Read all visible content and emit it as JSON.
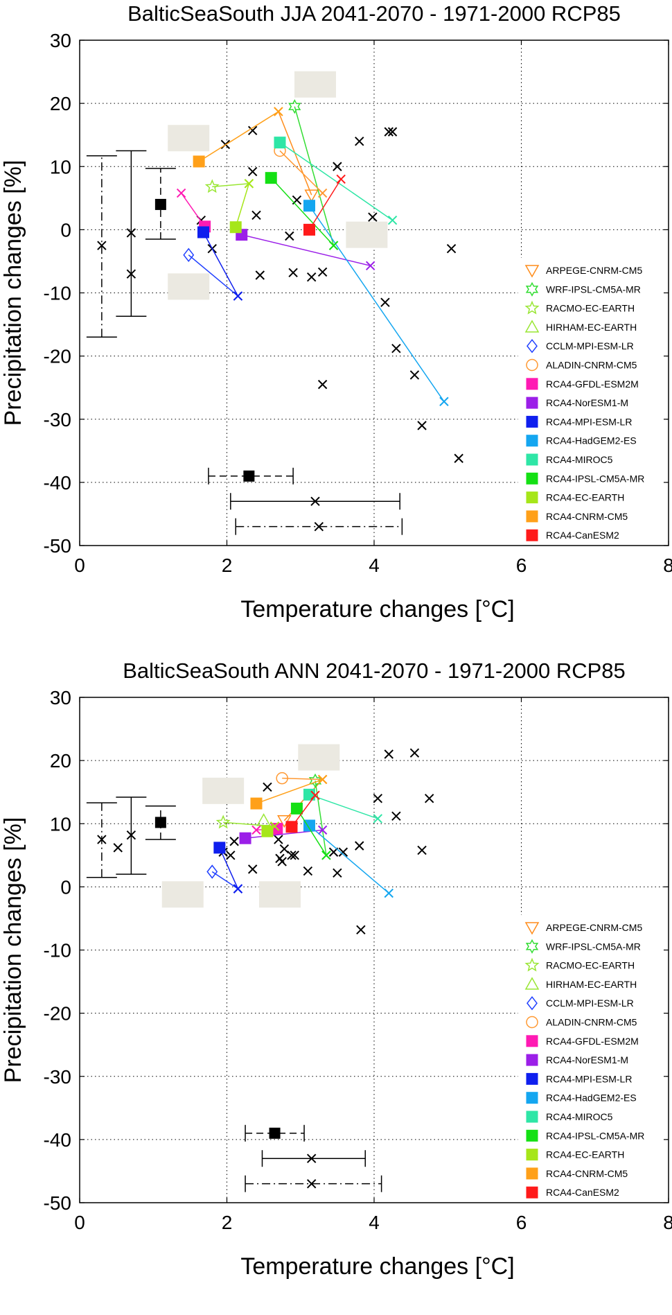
{
  "charts": [
    {
      "id": "jja",
      "title": "BalticSeaSouth JJA 2041-2070 - 1971-2000 RCP85",
      "xlabel": "Temperature changes [°C]",
      "ylabel": "Precipitation changes [%]",
      "xlim": [
        0,
        8
      ],
      "ylim": [
        -50,
        30
      ],
      "xticks": [
        "0",
        "2",
        "4",
        "6",
        "8"
      ],
      "yticks": [
        "-50",
        "-40",
        "-30",
        "-20",
        "-10",
        "0",
        "10",
        "20",
        "30"
      ],
      "cmip_points": [
        [
          0.3,
          -2.5
        ],
        [
          0.7,
          -0.5
        ],
        [
          0.7,
          -7
        ],
        [
          1.65,
          1.5
        ],
        [
          1.8,
          -3
        ],
        [
          1.98,
          13.5
        ],
        [
          2.35,
          15.7
        ],
        [
          2.35,
          9.2
        ],
        [
          2.4,
          2.3
        ],
        [
          2.45,
          -7.2
        ],
        [
          2.85,
          -1
        ],
        [
          2.9,
          -6.8
        ],
        [
          2.95,
          4.7
        ],
        [
          3.15,
          -7.5
        ],
        [
          3.3,
          -6.7
        ],
        [
          3.3,
          -24.5
        ],
        [
          3.5,
          10
        ],
        [
          3.8,
          14
        ],
        [
          3.98,
          2
        ],
        [
          4.15,
          -11.5
        ],
        [
          4.2,
          15.5
        ],
        [
          4.25,
          15.5
        ],
        [
          4.3,
          -18.8
        ],
        [
          4.55,
          -23
        ],
        [
          4.65,
          -31
        ],
        [
          5.05,
          -3
        ],
        [
          5.15,
          -36.2
        ]
      ],
      "error_bars_y": [
        {
          "x": 0.3,
          "low": -17,
          "high": 11.7,
          "style": "dashdot"
        },
        {
          "x": 0.7,
          "low": -13.7,
          "high": 12.5,
          "style": "solid"
        },
        {
          "x": 1.1,
          "low": -1.5,
          "high": 9.7,
          "style": "dashed",
          "center": 4
        }
      ],
      "error_bars_x": [
        {
          "y": -39,
          "low": 1.75,
          "high": 2.9,
          "style": "dashed",
          "center": 2.3
        },
        {
          "y": -43,
          "low": 2.05,
          "high": 4.35,
          "style": "solid",
          "center": 3.2
        },
        {
          "y": -47,
          "low": 2.12,
          "high": 4.38,
          "style": "dashdot",
          "center": 3.25
        }
      ],
      "shades": [
        {
          "x": 1.48,
          "y": 14.5
        },
        {
          "x": 3.2,
          "y": 23
        },
        {
          "x": 3.9,
          "y": -0.8
        },
        {
          "x": 1.48,
          "y": -9
        }
      ],
      "series": [
        {
          "name": "ARPEGE-CNRM-CM5",
          "color": "#ff8c1a",
          "marker": "tri-down",
          "filled": false,
          "x": [
            3.15
          ],
          "y": [
            5.5
          ],
          "gcm": [
            2.7,
            18.7
          ]
        },
        {
          "name": "WRF-IPSL-CM5A-MR",
          "color": "#33dd33",
          "marker": "hexagram",
          "filled": false,
          "x": [
            2.92
          ],
          "y": [
            19.5
          ],
          "gcm": [
            3.45,
            -2.5
          ]
        },
        {
          "name": "RACMO-EC-EARTH",
          "color": "#99e633",
          "marker": "pentagram",
          "filled": false,
          "x": [
            1.8
          ],
          "y": [
            6.8
          ],
          "gcm": [
            2.3,
            7.3
          ]
        },
        {
          "name": "HIRHAM-EC-EARTH",
          "color": "#99e633",
          "marker": "tri-up",
          "filled": false,
          "x": [],
          "y": [],
          "gcm": null
        },
        {
          "name": "CCLM-MPI-ESM-LR",
          "color": "#1f3fff",
          "marker": "diamond",
          "filled": false,
          "x": [
            1.48
          ],
          "y": [
            -4
          ],
          "gcm": [
            2.15,
            -10.5
          ]
        },
        {
          "name": "ALADIN-CNRM-CM5",
          "color": "#ff9933",
          "marker": "circle",
          "filled": false,
          "x": [
            2.72
          ],
          "y": [
            12.5
          ],
          "gcm": [
            3.3,
            5.8
          ]
        },
        {
          "name": "RCA4-GFDL-ESM2M",
          "color": "#ff1ab3",
          "marker": "square",
          "filled": true,
          "x": [
            1.7
          ],
          "y": [
            0.5
          ],
          "gcm": [
            1.38,
            5.8
          ]
        },
        {
          "name": "RCA4-NorESM1-M",
          "color": "#9b1fe8",
          "marker": "square",
          "filled": true,
          "x": [
            2.2
          ],
          "y": [
            -0.8
          ],
          "gcm": [
            3.95,
            -5.7
          ]
        },
        {
          "name": "RCA4-MPI-ESM-LR",
          "color": "#0f1fee",
          "marker": "square",
          "filled": true,
          "x": [
            1.68
          ],
          "y": [
            -0.4
          ],
          "gcm": [
            2.15,
            -10.5
          ]
        },
        {
          "name": "RCA4-HadGEM2-ES",
          "color": "#14a6f0",
          "marker": "square",
          "filled": true,
          "x": [
            3.12
          ],
          "y": [
            3.8
          ],
          "gcm": [
            4.95,
            -27.2
          ]
        },
        {
          "name": "RCA4-MIROC5",
          "color": "#2ee6a6",
          "marker": "square",
          "filled": true,
          "x": [
            2.72
          ],
          "y": [
            13.8
          ],
          "gcm": [
            4.25,
            1.5
          ]
        },
        {
          "name": "RCA4-IPSL-CM5A-MR",
          "color": "#14e014",
          "marker": "square",
          "filled": true,
          "x": [
            2.6
          ],
          "y": [
            8.2
          ],
          "gcm": [
            3.45,
            -2.5
          ]
        },
        {
          "name": "RCA4-EC-EARTH",
          "color": "#a6e619",
          "marker": "square",
          "filled": true,
          "x": [
            2.12
          ],
          "y": [
            0.4
          ],
          "gcm": [
            2.3,
            7.3
          ]
        },
        {
          "name": "RCA4-CNRM-CM5",
          "color": "#ffa019",
          "marker": "square",
          "filled": true,
          "x": [
            1.62
          ],
          "y": [
            10.8
          ],
          "gcm": [
            2.7,
            18.7
          ]
        },
        {
          "name": "RCA4-CanESM2",
          "color": "#ff1a1a",
          "marker": "square",
          "filled": true,
          "x": [
            3.12
          ],
          "y": [
            0
          ],
          "gcm": [
            3.55,
            8
          ]
        }
      ]
    },
    {
      "id": "ann",
      "title": "BalticSeaSouth ANN 2041-2070 - 1971-2000 RCP85",
      "xlabel": "Temperature changes [°C]",
      "ylabel": "Precipitation changes [%]",
      "xlim": [
        0,
        8
      ],
      "ylim": [
        -50,
        30
      ],
      "xticks": [
        "0",
        "2",
        "4",
        "6",
        "8"
      ],
      "yticks": [
        "-50",
        "-40",
        "-30",
        "-20",
        "-10",
        "0",
        "10",
        "20",
        "30"
      ],
      "cmip_points": [
        [
          0.3,
          7.5
        ],
        [
          0.52,
          6.2
        ],
        [
          0.7,
          8.2
        ],
        [
          1.95,
          5.5
        ],
        [
          2.05,
          5
        ],
        [
          2.1,
          7.2
        ],
        [
          2.35,
          2.8
        ],
        [
          2.55,
          15.8
        ],
        [
          2.7,
          7.5
        ],
        [
          2.72,
          4.5
        ],
        [
          2.75,
          4
        ],
        [
          2.78,
          6
        ],
        [
          2.88,
          5
        ],
        [
          2.92,
          5
        ],
        [
          3.1,
          2.5
        ],
        [
          3.45,
          5.5
        ],
        [
          3.5,
          2.2
        ],
        [
          3.58,
          5.5
        ],
        [
          3.8,
          6.5
        ],
        [
          3.82,
          -6.8
        ],
        [
          4.05,
          14
        ],
        [
          4.2,
          21
        ],
        [
          4.3,
          11.2
        ],
        [
          4.55,
          21.2
        ],
        [
          4.65,
          5.8
        ],
        [
          4.75,
          14
        ]
      ],
      "error_bars_y": [
        {
          "x": 0.3,
          "low": 1.5,
          "high": 13.3,
          "style": "dashdot"
        },
        {
          "x": 0.7,
          "low": 2,
          "high": 14.2,
          "style": "solid"
        },
        {
          "x": 1.1,
          "low": 7.5,
          "high": 12.8,
          "style": "dashed",
          "center": 10.2
        }
      ],
      "error_bars_x": [
        {
          "y": -39,
          "low": 2.25,
          "high": 3.05,
          "style": "dashed",
          "center": 2.65
        },
        {
          "y": -43,
          "low": 2.48,
          "high": 3.88,
          "style": "solid",
          "center": 3.15
        },
        {
          "y": -47,
          "low": 2.25,
          "high": 4.1,
          "style": "dashdot",
          "center": 3.15
        }
      ],
      "shades": [
        {
          "x": 1.95,
          "y": 15.2
        },
        {
          "x": 3.25,
          "y": 20.5
        },
        {
          "x": 1.4,
          "y": -1.2
        },
        {
          "x": 2.72,
          "y": -1.2
        }
      ],
      "series": [
        {
          "name": "ARPEGE-CNRM-CM5",
          "color": "#ff8c1a",
          "marker": "tri-down",
          "filled": false,
          "x": [
            2.78
          ],
          "y": [
            10.5
          ],
          "gcm": [
            3.3,
            17
          ]
        },
        {
          "name": "WRF-IPSL-CM5A-MR",
          "color": "#33dd33",
          "marker": "hexagram",
          "filled": false,
          "x": [
            3.2
          ],
          "y": [
            16.8
          ],
          "gcm": [
            3.35,
            5
          ]
        },
        {
          "name": "RACMO-EC-EARTH",
          "color": "#99e633",
          "marker": "pentagram",
          "filled": false,
          "x": [
            1.95
          ],
          "y": [
            10.2
          ],
          "gcm": [
            2.65,
            9.6
          ]
        },
        {
          "name": "HIRHAM-EC-EARTH",
          "color": "#99e633",
          "marker": "tri-up",
          "filled": false,
          "x": [
            2.5
          ],
          "y": [
            10.5
          ],
          "gcm": null
        },
        {
          "name": "CCLM-MPI-ESM-LR",
          "color": "#1f3fff",
          "marker": "diamond",
          "filled": false,
          "x": [
            1.8
          ],
          "y": [
            2.4
          ],
          "gcm": [
            2.15,
            -0.3
          ]
        },
        {
          "name": "ALADIN-CNRM-CM5",
          "color": "#ff9933",
          "marker": "circle",
          "filled": false,
          "x": [
            2.75
          ],
          "y": [
            17.2
          ],
          "gcm": [
            3.3,
            17
          ]
        },
        {
          "name": "RCA4-GFDL-ESM2M",
          "color": "#ff1ab3",
          "marker": "square",
          "filled": true,
          "x": [
            2.68
          ],
          "y": [
            9.2
          ],
          "gcm": [
            2.4,
            9
          ]
        },
        {
          "name": "RCA4-NorESM1-M",
          "color": "#9b1fe8",
          "marker": "square",
          "filled": true,
          "x": [
            2.25
          ],
          "y": [
            7.7
          ],
          "gcm": [
            3.3,
            9
          ]
        },
        {
          "name": "RCA4-MPI-ESM-LR",
          "color": "#0f1fee",
          "marker": "square",
          "filled": true,
          "x": [
            1.9
          ],
          "y": [
            6.2
          ],
          "gcm": [
            2.15,
            -0.3
          ]
        },
        {
          "name": "RCA4-HadGEM2-ES",
          "color": "#14a6f0",
          "marker": "square",
          "filled": true,
          "x": [
            3.12
          ],
          "y": [
            9.7
          ],
          "gcm": [
            4.2,
            -1
          ]
        },
        {
          "name": "RCA4-MIROC5",
          "color": "#2ee6a6",
          "marker": "square",
          "filled": true,
          "x": [
            3.12
          ],
          "y": [
            14.6
          ],
          "gcm": [
            4.05,
            10.8
          ]
        },
        {
          "name": "RCA4-IPSL-CM5A-MR",
          "color": "#14e014",
          "marker": "square",
          "filled": true,
          "x": [
            2.95
          ],
          "y": [
            12.4
          ],
          "gcm": [
            3.35,
            5
          ]
        },
        {
          "name": "RCA4-EC-EARTH",
          "color": "#a6e619",
          "marker": "square",
          "filled": true,
          "x": [
            2.55
          ],
          "y": [
            8.8
          ],
          "gcm": [
            2.65,
            9.6
          ]
        },
        {
          "name": "RCA4-CNRM-CM5",
          "color": "#ffa019",
          "marker": "square",
          "filled": true,
          "x": [
            2.4
          ],
          "y": [
            13.2
          ],
          "gcm": [
            3.3,
            17
          ]
        },
        {
          "name": "RCA4-CanESM2",
          "color": "#ff1a1a",
          "marker": "square",
          "filled": true,
          "x": [
            2.88
          ],
          "y": [
            9.5
          ],
          "gcm": [
            3.2,
            14.5
          ]
        }
      ]
    }
  ]
}
